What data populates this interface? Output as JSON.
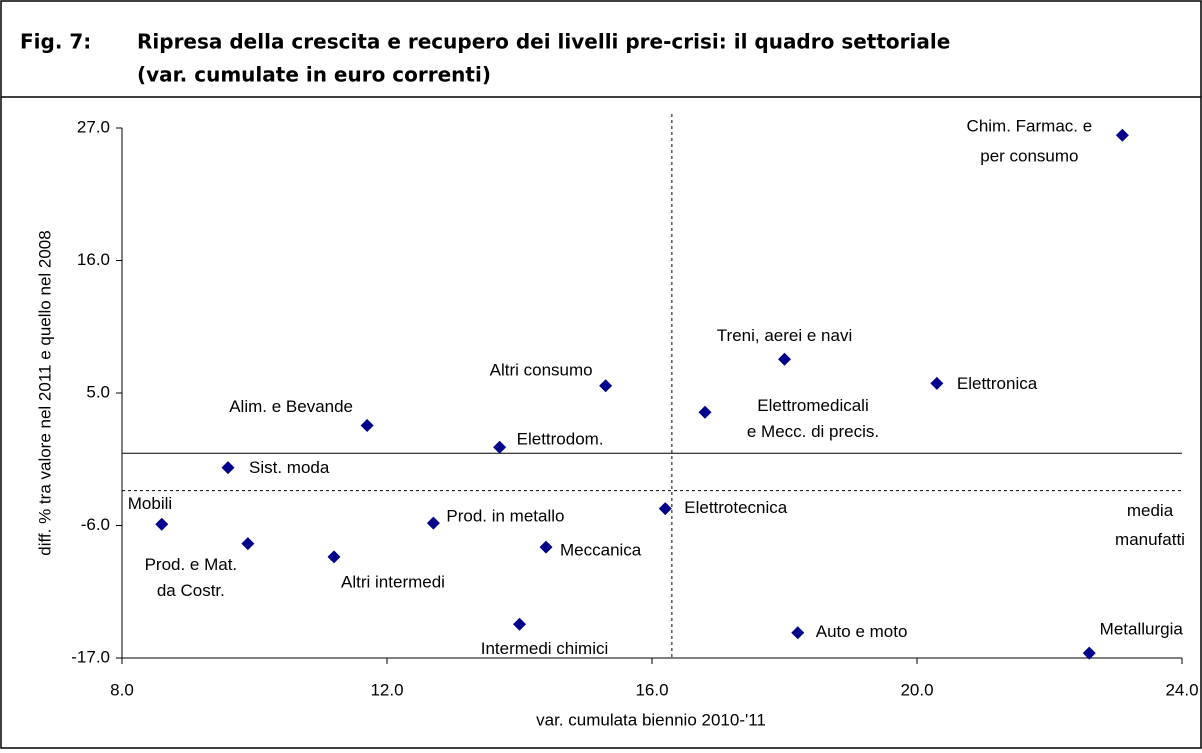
{
  "chart_data": {
    "type": "scatter",
    "figure_label": "Fig. 7:",
    "title": [
      "Ripresa della crescita e recupero dei livelli pre-crisi: il quadro settoriale",
      "(var. cumulate in euro correnti)"
    ],
    "xlabel": "var. cumulata biennio 2010-'11",
    "ylabel": "diff. % tra valore nel 2011 e quello nel 2008",
    "xlim": [
      8,
      24
    ],
    "ylim": [
      -17,
      27
    ],
    "xticks": [
      {
        "value": 8,
        "label": "8.0"
      },
      {
        "value": 12,
        "label": "12.0"
      },
      {
        "value": 16,
        "label": "16.0"
      },
      {
        "value": 20,
        "label": "20.0"
      },
      {
        "value": 24,
        "label": "24.0"
      }
    ],
    "yticks": [
      {
        "value": -17,
        "label": "-17.0"
      },
      {
        "value": -6,
        "label": "-6.0"
      },
      {
        "value": 5,
        "label": "5.0"
      },
      {
        "value": 16,
        "label": "16.0"
      },
      {
        "value": 27,
        "label": "27.0"
      }
    ],
    "color": "#00008b",
    "zero_line": true,
    "labels": [
      [
        "Chim. Farmac. e",
        "per consumo"
      ],
      [
        "Treni, aerei e navi"
      ],
      [
        "Elettronica"
      ],
      [
        "Altri consumo"
      ],
      [
        "Elettromedicali",
        "e Mecc. di precis."
      ],
      [
        "Alim. e Bevande"
      ],
      [
        "Elettrodom."
      ],
      [
        "Sist. moda"
      ],
      [
        "Mobili"
      ],
      [
        "Prod. e Mat.",
        "da Costr."
      ],
      [
        "Altri intermedi"
      ],
      [
        "Prod. in metallo"
      ],
      [
        "Meccanica"
      ],
      [
        "Elettrotecnica"
      ],
      [
        "Intermedi chimici"
      ],
      [
        "Auto e moto"
      ],
      [
        "Metallurgia"
      ]
    ],
    "x": [
      23.1,
      18.0,
      20.3,
      15.3,
      16.8,
      11.7,
      13.7,
      9.6,
      8.6,
      9.9,
      11.2,
      12.7,
      14.4,
      16.2,
      14.0,
      18.2,
      22.6
    ],
    "y": [
      26.4,
      7.8,
      5.8,
      5.6,
      3.4,
      2.3,
      0.5,
      -1.2,
      -5.9,
      -7.5,
      -8.6,
      -5.8,
      -7.8,
      -4.6,
      -14.2,
      -14.9,
      -16.6
    ],
    "reference_lines": {
      "x": 16.3,
      "y": -3.1,
      "label": [
        "media",
        "manufatti"
      ]
    }
  }
}
